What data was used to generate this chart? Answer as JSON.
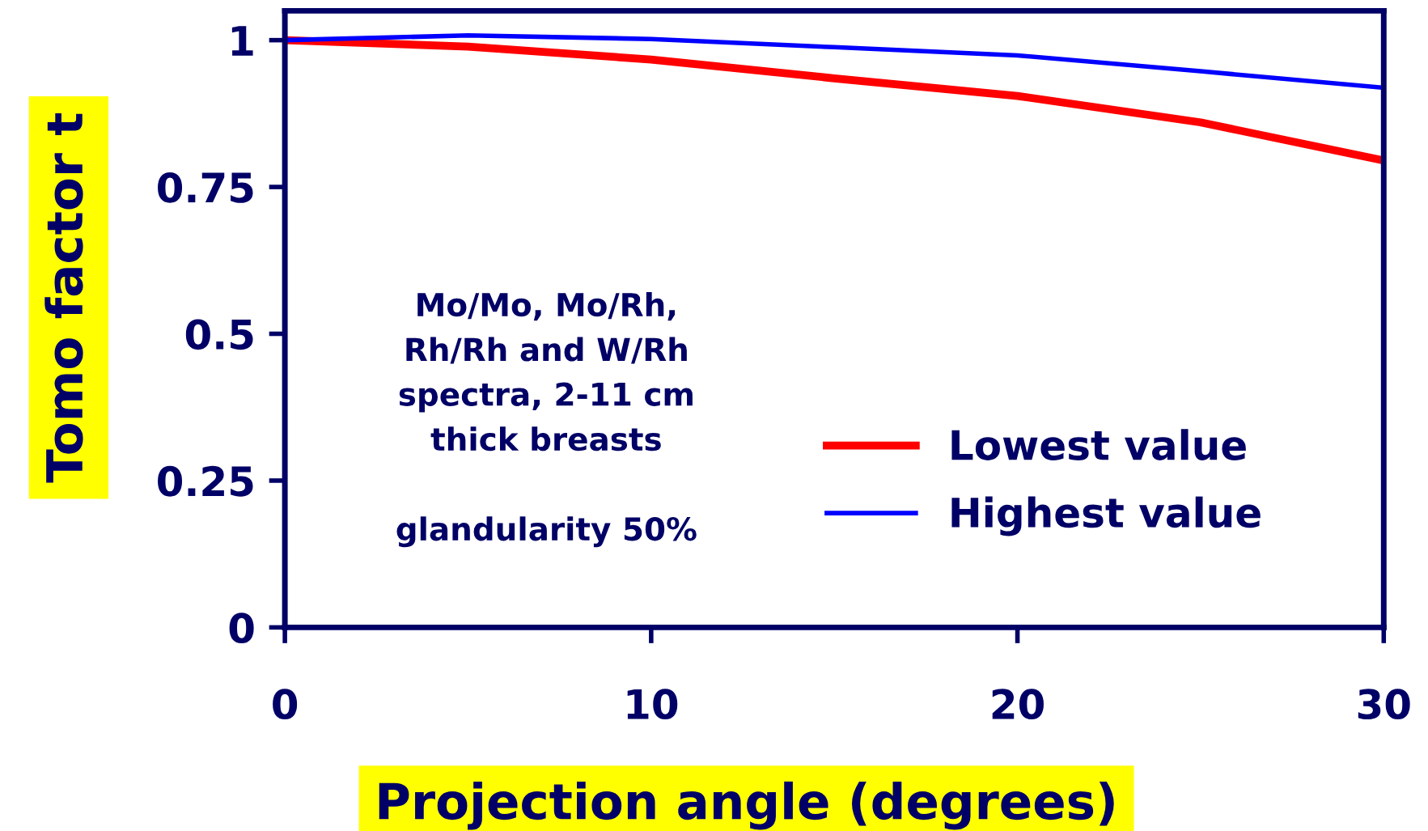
{
  "chart_data": {
    "type": "line",
    "xlabel": "Projection angle (degrees)",
    "ylabel": "Tomo factor t",
    "x": [
      0,
      5,
      10,
      15,
      20,
      25,
      30
    ],
    "series": [
      {
        "name": "Lowest value",
        "color": "#ff0000",
        "values": [
          1.0,
          0.989,
          0.967,
          0.935,
          0.905,
          0.86,
          0.795
        ]
      },
      {
        "name": "Highest value",
        "color": "#0000ff",
        "values": [
          1.0,
          1.008,
          1.002,
          0.988,
          0.974,
          0.947,
          0.919
        ]
      }
    ],
    "xlim": [
      0,
      30
    ],
    "xticks": [
      0,
      10,
      20,
      30
    ],
    "ylim": [
      0,
      1.05
    ],
    "yticks": [
      0,
      0.25,
      0.5,
      0.75,
      1
    ],
    "annotations": [
      "Mo/Mo, Mo/Rh,\nRh/Rh and W/Rh\nspectra, 2-11 cm\nthick breasts",
      "glandularity 50%"
    ],
    "legend": "bottom right",
    "grid": false,
    "marker": "none",
    "line_style": "solid"
  }
}
